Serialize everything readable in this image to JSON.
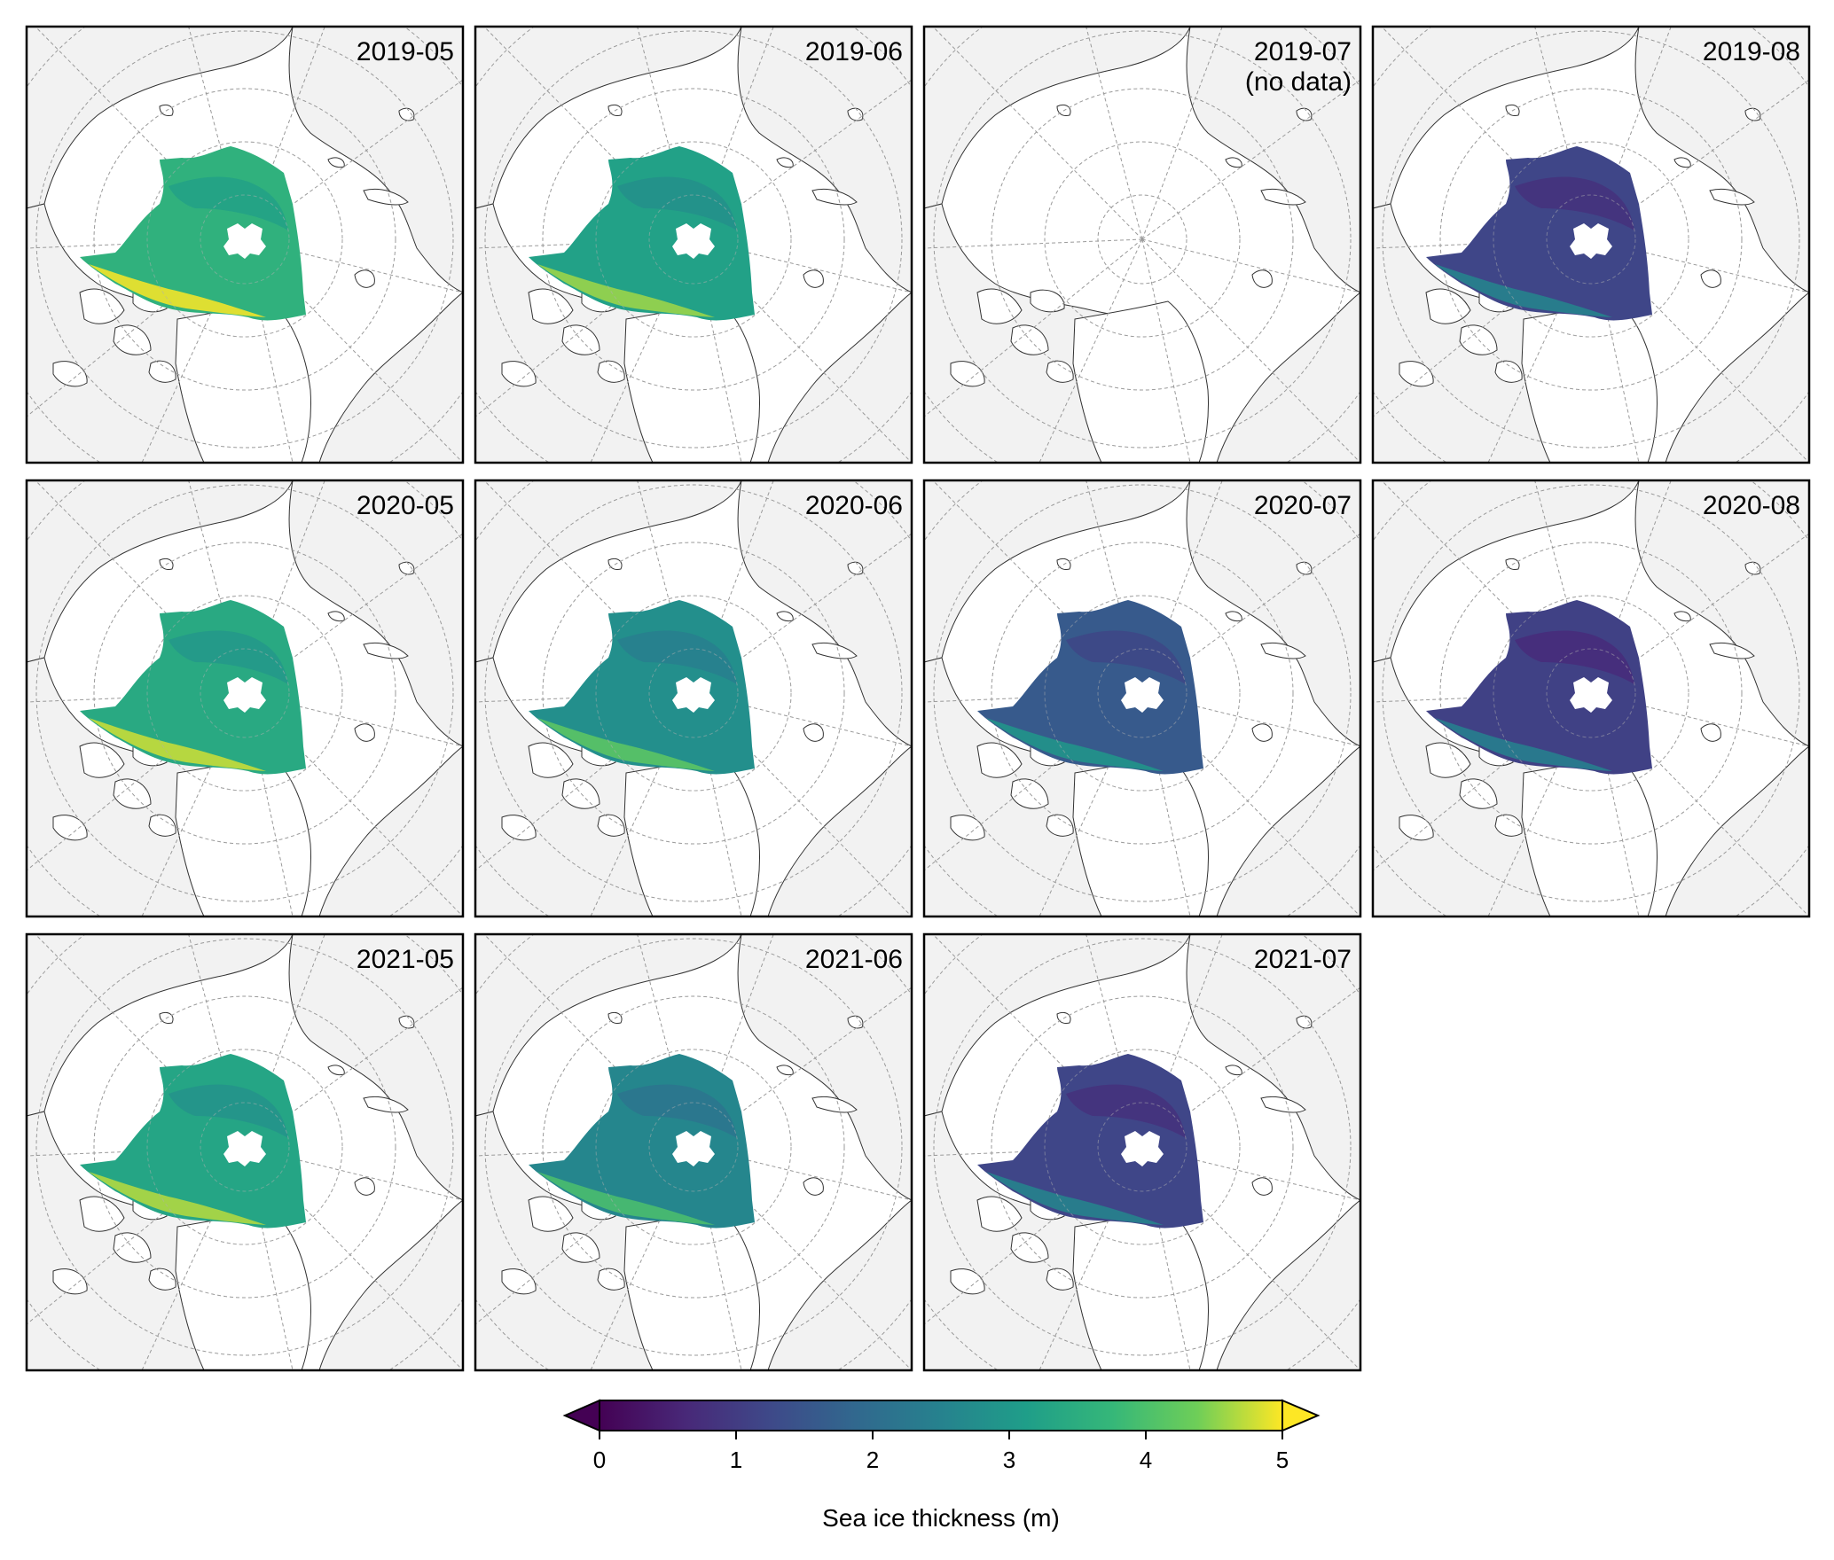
{
  "figure": {
    "panels": [
      {
        "label": "2019-05",
        "has_data": true,
        "mean": 3.6
      },
      {
        "label": "2019-06",
        "has_data": true,
        "mean": 3.2
      },
      {
        "label": "2019-07\n(no data)",
        "has_data": false,
        "mean": 0
      },
      {
        "label": "2019-08",
        "has_data": true,
        "mean": 1.2
      },
      {
        "label": "2020-05",
        "has_data": true,
        "mean": 3.4
      },
      {
        "label": "2020-06",
        "has_data": true,
        "mean": 2.8
      },
      {
        "label": "2020-07",
        "has_data": true,
        "mean": 1.6
      },
      {
        "label": "2020-08",
        "has_data": true,
        "mean": 1.1
      },
      {
        "label": "2021-05",
        "has_data": true,
        "mean": 3.3
      },
      {
        "label": "2021-06",
        "has_data": true,
        "mean": 2.6
      },
      {
        "label": "2021-07",
        "has_data": true,
        "mean": 1.2
      }
    ],
    "colorbar": {
      "ticks": [
        "0",
        "1",
        "2",
        "3",
        "4",
        "5"
      ],
      "range": [
        0,
        5
      ],
      "label": "Sea ice thickness (m)",
      "colormap": "viridis",
      "extend": "both"
    },
    "colors": {
      "land": "#f2f2f2",
      "ocean": "#ffffff",
      "coast": "#333333",
      "grid": "#9a9a9a"
    }
  }
}
